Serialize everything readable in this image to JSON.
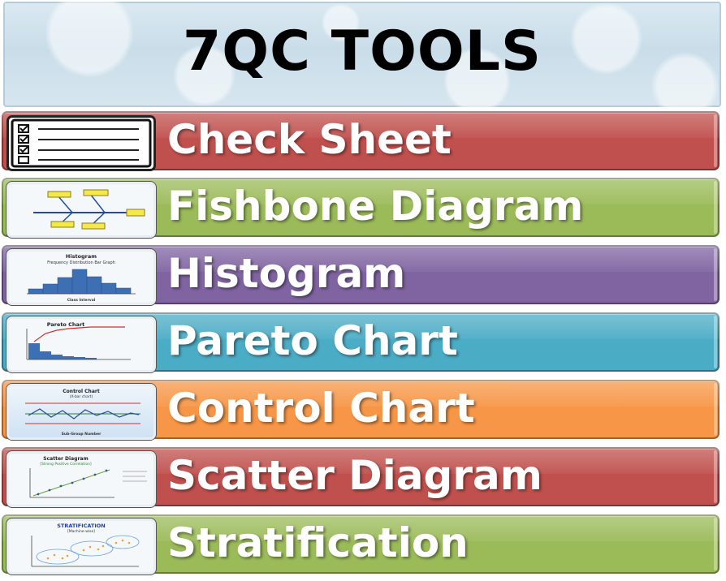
{
  "header": {
    "title": "7QC TOOLS"
  },
  "tools": [
    {
      "label": "Check Sheet",
      "color": "#c0504d",
      "icon": "check-sheet-icon"
    },
    {
      "label": "Fishbone Diagram",
      "color": "#9bbb59",
      "icon": "fishbone-icon"
    },
    {
      "label": "Histogram",
      "color": "#8064a2",
      "icon": "histogram-icon"
    },
    {
      "label": "Pareto Chart",
      "color": "#4bacc6",
      "icon": "pareto-chart-icon"
    },
    {
      "label": "Control Chart",
      "color": "#f79646",
      "icon": "control-chart-icon"
    },
    {
      "label": "Scatter Diagram",
      "color": "#c0504d",
      "icon": "scatter-diagram-icon"
    },
    {
      "label": "Stratification",
      "color": "#9bbb59",
      "icon": "stratification-icon"
    }
  ],
  "thumb_text": {
    "histogram_title": "Histogram",
    "histogram_subtitle": "Frequency Distribution Bar Graph",
    "histogram_xlabel": "Class Interval",
    "pareto_title": "Pareto Chart",
    "control_title": "Control Chart",
    "control_subtitle": "(X-bar chart)",
    "control_xlabel": "Sub-Group Number",
    "scatter_title": "Scatter Diagram",
    "scatter_subtitle": "[Strong Positive Correlation]",
    "strat_title": "STRATIFICATION",
    "strat_subtitle": "[Machine-wise]"
  }
}
